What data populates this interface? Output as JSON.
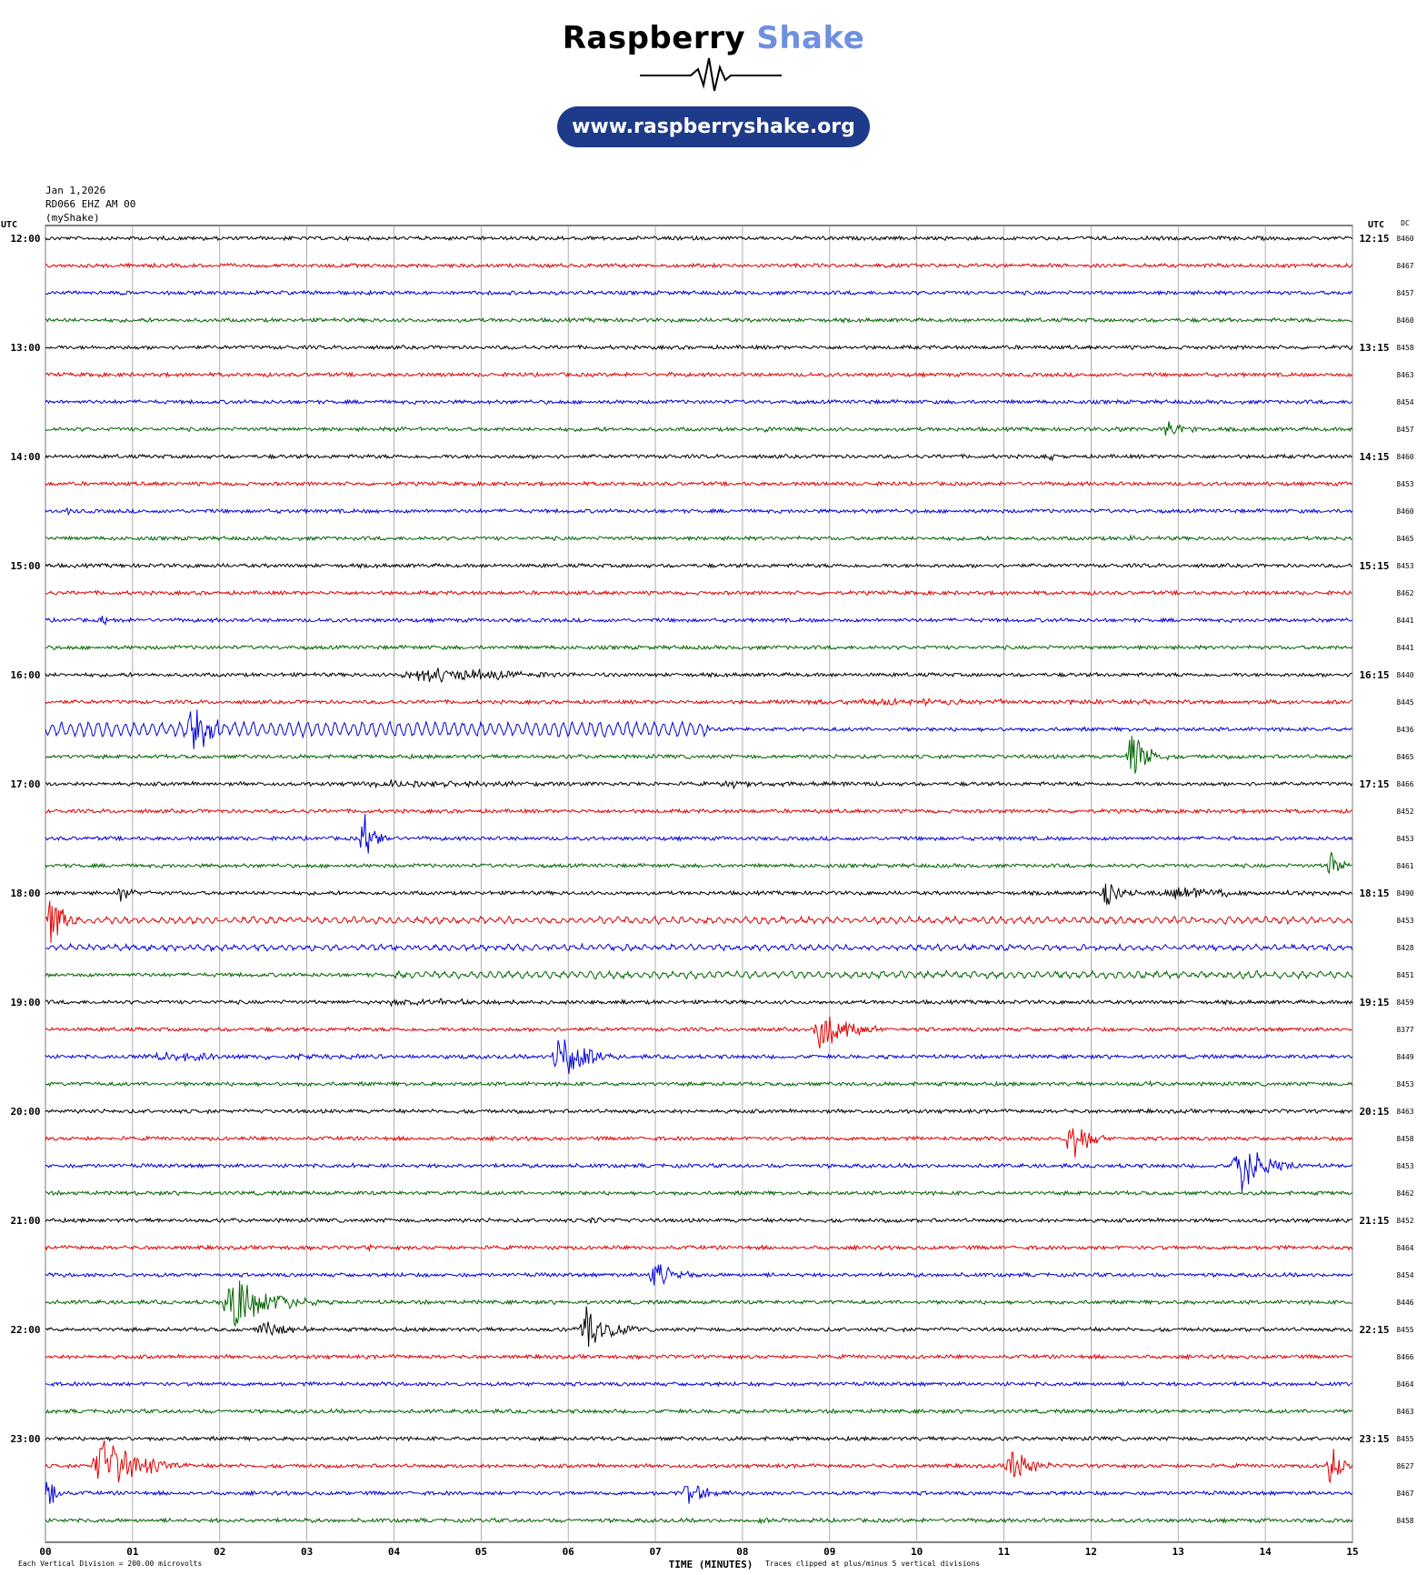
{
  "header": {
    "brand_part1": "Raspberry",
    "brand_part2": "Shake",
    "url": "www.raspberryshake.org",
    "brand_color": "#6f8fe0",
    "pill_color": "#1e3a8a"
  },
  "meta": {
    "date": "Jan 1,2026",
    "station": "RD066 EHZ AM 00",
    "source": "(myShake)"
  },
  "labels": {
    "utc_left": "UTC",
    "utc_right": "UTC",
    "dc": "DC",
    "footer_left": "Each Vertical Division = 200.00 microvolts",
    "footer_center": "TIME (MINUTES)",
    "footer_right": "Traces clipped at plus/minus 5 vertical divisions"
  },
  "chart_data": {
    "type": "line",
    "title": "",
    "xlabel": "TIME (MINUTES)",
    "xlim": [
      0,
      15
    ],
    "x_ticks": [
      "00",
      "01",
      "02",
      "03",
      "04",
      "05",
      "06",
      "07",
      "08",
      "09",
      "10",
      "11",
      "12",
      "13",
      "14",
      "15"
    ],
    "trace_colors": [
      "#000000",
      "#e00000",
      "#0000d8",
      "#006400"
    ],
    "left_hour_labels": [
      "12:00",
      "13:00",
      "14:00",
      "15:00",
      "16:00",
      "17:00",
      "18:00",
      "19:00",
      "20:00",
      "21:00",
      "22:00",
      "23:00"
    ],
    "right_hour_labels": [
      "12:15",
      "13:15",
      "14:15",
      "15:15",
      "16:15",
      "17:15",
      "18:15",
      "19:15",
      "20:15",
      "21:15",
      "22:15",
      "23:15"
    ],
    "dc_values": [
      8460,
      8467,
      8457,
      8460,
      8458,
      8463,
      8454,
      8457,
      8460,
      8453,
      8460,
      8465,
      8453,
      8462,
      8441,
      8441,
      8440,
      8445,
      8436,
      8465,
      8466,
      8452,
      8453,
      8461,
      8490,
      8453,
      8428,
      8451,
      8459,
      8377,
      8449,
      8453,
      8463,
      8458,
      8453,
      8462,
      8452,
      8464,
      8454,
      8446,
      8455,
      8466,
      8464,
      8463,
      8455,
      8627,
      8467,
      8458
    ],
    "events": [
      {
        "row": 0,
        "t": 6.0,
        "dur": 1.2,
        "amp": 0.25
      },
      {
        "row": 0,
        "t": 11.4,
        "dur": 0.1,
        "amp": 0.6
      },
      {
        "row": 5,
        "t": 7.1,
        "dur": 0.1,
        "amp": 0.4
      },
      {
        "row": 7,
        "t": 12.8,
        "dur": 0.6,
        "amp": 1.8
      },
      {
        "row": 7,
        "t": 12.2,
        "dur": 0.6,
        "amp": 0.4
      },
      {
        "row": 7,
        "t": 4.0,
        "dur": 0.4,
        "amp": 0.3
      },
      {
        "row": 7,
        "t": 8.2,
        "dur": 0.4,
        "amp": 0.3
      },
      {
        "row": 8,
        "t": 7.15,
        "dur": 0.05,
        "amp": 1.0
      },
      {
        "row": 8,
        "t": 11.5,
        "dur": 0.2,
        "amp": 0.5
      },
      {
        "row": 10,
        "t": 0.2,
        "dur": 0.2,
        "amp": 0.6
      },
      {
        "row": 10,
        "t": 3.8,
        "dur": 0.1,
        "amp": 0.4
      },
      {
        "row": 11,
        "t": 12.4,
        "dur": 0.3,
        "amp": 0.6
      },
      {
        "row": 14,
        "t": 0.6,
        "dur": 0.3,
        "amp": 0.8
      },
      {
        "row": 16,
        "t": 4.0,
        "dur": 2.6,
        "amp": 1.5
      },
      {
        "row": 17,
        "t": 8.4,
        "dur": 6.6,
        "amp": 0.5
      },
      {
        "row": 18,
        "t": 0.0,
        "dur": 7.6,
        "amp": 1.1,
        "kind": "wave"
      },
      {
        "row": 18,
        "t": 1.6,
        "dur": 0.6,
        "amp": 5.0
      },
      {
        "row": 19,
        "t": 12.4,
        "dur": 0.5,
        "amp": 5.0
      },
      {
        "row": 20,
        "t": 3.5,
        "dur": 3.5,
        "amp": 0.6
      },
      {
        "row": 20,
        "t": 7.6,
        "dur": 2.0,
        "amp": 0.6
      },
      {
        "row": 22,
        "t": 3.6,
        "dur": 0.4,
        "amp": 5.0
      },
      {
        "row": 22,
        "t": 13.6,
        "dur": 0.2,
        "amp": 0.5
      },
      {
        "row": 23,
        "t": 14.7,
        "dur": 0.3,
        "amp": 3.0
      },
      {
        "row": 24,
        "t": 0.8,
        "dur": 0.4,
        "amp": 1.4
      },
      {
        "row": 24,
        "t": 12.1,
        "dur": 0.5,
        "amp": 2.5
      },
      {
        "row": 24,
        "t": 12.6,
        "dur": 2.4,
        "amp": 1.0
      },
      {
        "row": 25,
        "t": 0.0,
        "dur": 15.0,
        "amp": 0.4,
        "kind": "wave"
      },
      {
        "row": 25,
        "t": 0.0,
        "dur": 0.4,
        "amp": 5.0
      },
      {
        "row": 26,
        "t": 0.0,
        "dur": 15.0,
        "amp": 0.3,
        "kind": "wave"
      },
      {
        "row": 27,
        "t": 4.0,
        "dur": 11.0,
        "amp": 0.4,
        "kind": "wave"
      },
      {
        "row": 28,
        "t": 3.6,
        "dur": 3.2,
        "amp": 0.6
      },
      {
        "row": 29,
        "t": 8.8,
        "dur": 0.8,
        "amp": 5.0
      },
      {
        "row": 30,
        "t": 0.8,
        "dur": 4.0,
        "amp": 0.7
      },
      {
        "row": 30,
        "t": 5.8,
        "dur": 0.8,
        "amp": 5.0
      },
      {
        "row": 31,
        "t": 12.6,
        "dur": 0.2,
        "amp": 0.4
      },
      {
        "row": 33,
        "t": 11.7,
        "dur": 0.5,
        "amp": 5.0
      },
      {
        "row": 33,
        "t": 5.9,
        "dur": 0.2,
        "amp": 0.4
      },
      {
        "row": 34,
        "t": 13.6,
        "dur": 0.8,
        "amp": 5.0
      },
      {
        "row": 34,
        "t": 3.5,
        "dur": 0.4,
        "amp": 0.4
      },
      {
        "row": 35,
        "t": 0.9,
        "dur": 0.2,
        "amp": 0.4
      },
      {
        "row": 36,
        "t": 6.2,
        "dur": 0.4,
        "amp": 0.6
      },
      {
        "row": 37,
        "t": 3.7,
        "dur": 0.1,
        "amp": 0.5
      },
      {
        "row": 38,
        "t": 6.9,
        "dur": 0.6,
        "amp": 2.8
      },
      {
        "row": 39,
        "t": 2.0,
        "dur": 1.2,
        "amp": 5.0
      },
      {
        "row": 40,
        "t": 2.4,
        "dur": 0.8,
        "amp": 1.6
      },
      {
        "row": 40,
        "t": 6.1,
        "dur": 0.7,
        "amp": 5.0
      },
      {
        "row": 42,
        "t": 8.2,
        "dur": 0.1,
        "amp": 0.4
      },
      {
        "row": 45,
        "t": 0.5,
        "dur": 1.2,
        "amp": 5.0
      },
      {
        "row": 45,
        "t": 11.0,
        "dur": 0.6,
        "amp": 3.5
      },
      {
        "row": 45,
        "t": 14.7,
        "dur": 0.3,
        "amp": 5.0
      },
      {
        "row": 46,
        "t": 0.0,
        "dur": 0.2,
        "amp": 5.0
      },
      {
        "row": 46,
        "t": 7.3,
        "dur": 0.6,
        "amp": 2.5
      },
      {
        "row": 47,
        "t": 8.0,
        "dur": 1.0,
        "amp": 0.3
      }
    ]
  }
}
